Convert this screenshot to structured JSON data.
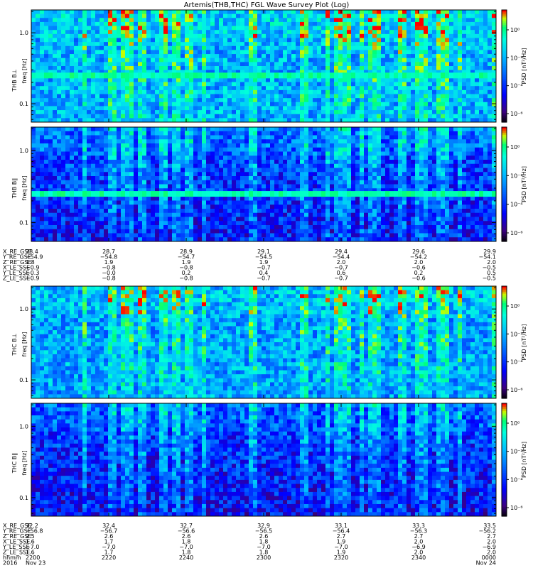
{
  "title": "Artemis(THB,THC) FGL Wave Survey Plot (Log)",
  "colorbar": {
    "label": "PSD [nT²/Hz]",
    "tick_labels": [
      "10⁰",
      "10⁻²",
      "10⁻⁴",
      "10⁻⁶"
    ],
    "colors": [
      "#000000",
      "#4b0082",
      "#0000ff",
      "#00bfff",
      "#00ffff",
      "#00ff80",
      "#ffff00",
      "#ff8000",
      "#ff0000"
    ]
  },
  "freq_tick_labels": [
    "1.0",
    "0.1"
  ],
  "chart_data": [
    {
      "type": "heatmap",
      "panel": "THB B⊥",
      "ylabel_probe": "THB B⊥",
      "ylabel_units": "freq [Hz]",
      "y_scale": "log",
      "y_ticks": [
        1.0,
        0.1
      ],
      "z_scale": "log",
      "features": [
        {
          "freq_hz": 0.25,
          "note": "persistent band"
        }
      ]
    },
    {
      "type": "heatmap",
      "panel": "THB B∥",
      "ylabel_probe": "THB B∥",
      "ylabel_units": "freq [Hz]",
      "y_scale": "log",
      "y_ticks": [
        1.0,
        0.1
      ],
      "z_scale": "log",
      "features": [
        {
          "freq_hz": 0.25,
          "note": "persistent band"
        }
      ]
    },
    {
      "type": "heatmap",
      "panel": "THC B⊥",
      "ylabel_probe": "THC B⊥",
      "ylabel_units": "freq [Hz]",
      "y_scale": "log",
      "y_ticks": [
        1.0,
        0.1
      ],
      "z_scale": "log"
    },
    {
      "type": "heatmap",
      "panel": "THC B∥",
      "ylabel_probe": "THC B∥",
      "ylabel_units": "freq [Hz]",
      "y_scale": "log",
      "y_ticks": [
        1.0,
        0.1
      ],
      "z_scale": "log"
    }
  ],
  "ephemeris_thb": {
    "rows": [
      {
        "label": "X_RE_GSE",
        "values": [
          "28.4",
          "28.7",
          "28.9",
          "29.1",
          "29.4",
          "29.6",
          "29.9"
        ]
      },
      {
        "label": "Y_RE_GSE",
        "values": [
          "−54.9",
          "−54.8",
          "−54.7",
          "−54.5",
          "−54.4",
          "−54.2",
          "−54.1"
        ]
      },
      {
        "label": "Z_RE_GSE",
        "values": [
          "1.8",
          "1.9",
          "1.9",
          "1.9",
          "2.0",
          "2.0",
          "2.0"
        ]
      },
      {
        "label": "X_LE_SSE",
        "values": [
          "−0.9",
          "−0.8",
          "−0.8",
          "−0.7",
          "−0.7",
          "−0.6",
          "−0.5"
        ]
      },
      {
        "label": "Y_LE_SSE",
        "values": [
          "−0.3",
          "−0.0",
          "0.2",
          "0.4",
          "0.6",
          "0.2",
          "0.5"
        ]
      },
      {
        "label": "Z_LE_SSE",
        "values": [
          "−0.9",
          "−0.8",
          "−0.8",
          "−0.7",
          "−0.7",
          "−0.6",
          "−0.5"
        ]
      }
    ]
  },
  "ephemeris_thc": {
    "rows": [
      {
        "label": "X_RE_GSE",
        "values": [
          "32.2",
          "32.4",
          "32.7",
          "32.9",
          "33.1",
          "33.3",
          "33.5"
        ]
      },
      {
        "label": "Y_RE_GSE",
        "values": [
          "−56.8",
          "−56.7",
          "−56.6",
          "−56.5",
          "−56.4",
          "−56.3",
          "−56.2"
        ]
      },
      {
        "label": "Z_RE_GSE",
        "values": [
          "2.5",
          "2.6",
          "2.6",
          "2.6",
          "2.7",
          "2.7",
          "2.7"
        ]
      },
      {
        "label": "X_LE_SSE",
        "values": [
          "1.6",
          "1.7",
          "1.8",
          "1.8",
          "1.9",
          "2.0",
          "2.0"
        ]
      },
      {
        "label": "Y_LE_SSE",
        "values": [
          "−7.0",
          "−7.0",
          "−7.0",
          "−7.0",
          "−7.0",
          "−6.9",
          "−6.9"
        ]
      },
      {
        "label": "Z_LE_SSE",
        "values": [
          "1.6",
          "1.7",
          "1.8",
          "1.8",
          "1.9",
          "2.0",
          "2.0"
        ]
      }
    ],
    "time": {
      "label": "hhmm",
      "values": [
        "2200",
        "2220",
        "2240",
        "2300",
        "2320",
        "2340",
        "0000"
      ]
    },
    "date": {
      "label": "2016",
      "start": "Nov 23",
      "end": "Nov 24"
    }
  }
}
